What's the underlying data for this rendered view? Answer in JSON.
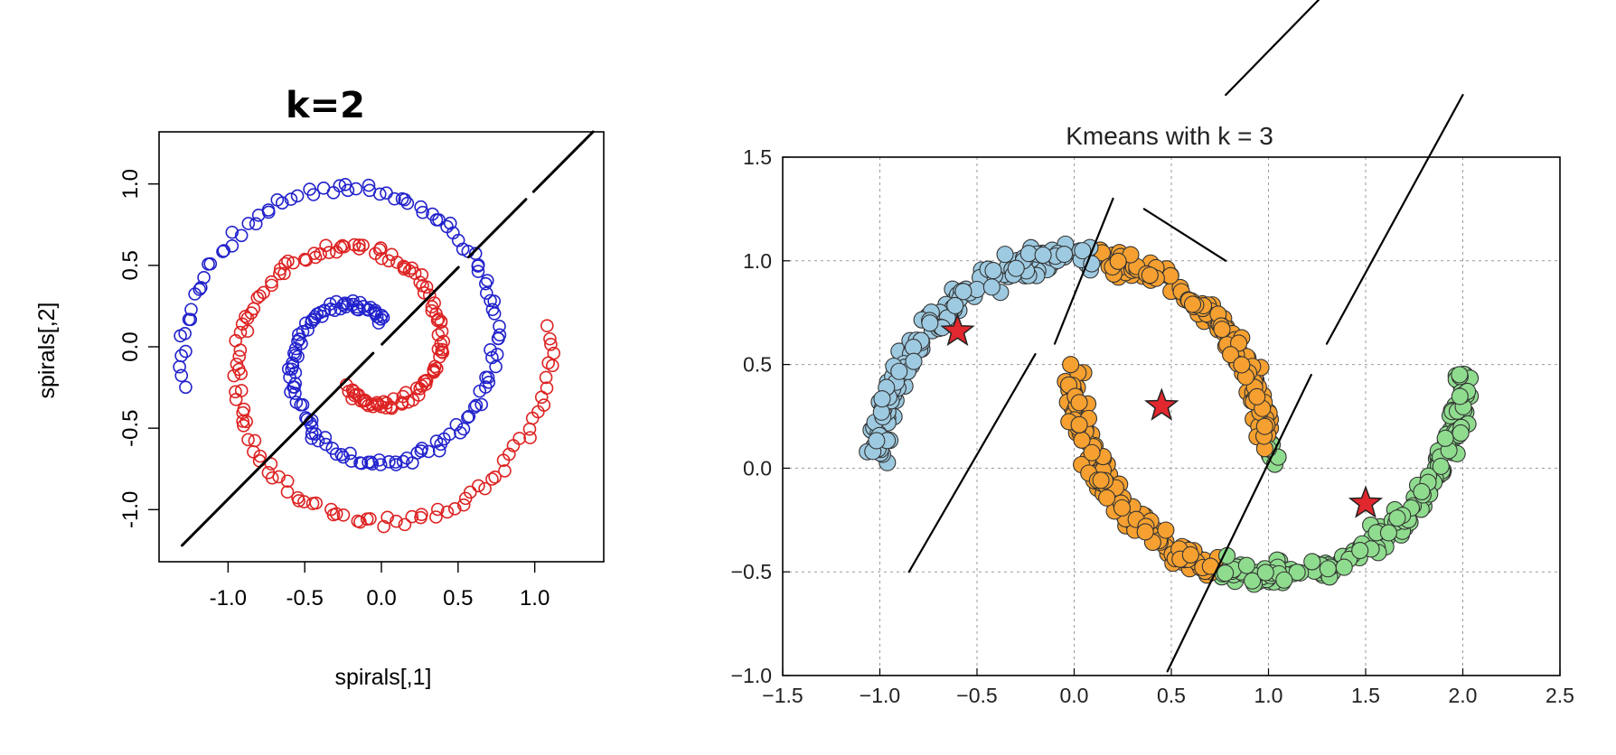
{
  "chart_data": [
    {
      "type": "scatter",
      "title": "k=2",
      "xlabel": "spirals[,1]",
      "ylabel": "spirals[,2]",
      "xlim": [
        -1.45,
        1.45
      ],
      "ylim": [
        -1.32,
        1.32
      ],
      "xticks": [
        -1.0,
        -0.5,
        0.0,
        0.5,
        1.0
      ],
      "xtick_labels": [
        "-1.0",
        "-0.5",
        "0.0",
        "0.5",
        "1.0"
      ],
      "yticks": [
        -1.0,
        -0.5,
        0.0,
        0.5,
        1.0
      ],
      "ytick_labels": [
        "-1.0",
        "-0.5",
        "0.0",
        "0.5",
        "1.0"
      ],
      "grid": false,
      "marker": "open-circle",
      "colors": {
        "cluster_1": "#2222cc",
        "cluster_2": "#dd2222"
      },
      "annotation_line": [
        [
          -1.3,
          -1.22
        ],
        [
          1.38,
          1.32
        ]
      ]
    },
    {
      "type": "scatter",
      "title": "Kmeans with k = 3",
      "xlabel": "",
      "ylabel": "",
      "xlim": [
        -1.5,
        2.5
      ],
      "ylim": [
        -1.0,
        1.5
      ],
      "xticks": [
        -1.5,
        -1.0,
        -0.5,
        0.0,
        0.5,
        1.0,
        1.5,
        2.0,
        2.5
      ],
      "xtick_labels": [
        "−1.5",
        "−1.0",
        "−0.5",
        "0.0",
        "0.5",
        "1.0",
        "1.5",
        "2.0",
        "2.5"
      ],
      "yticks": [
        -1.0,
        -0.5,
        0.0,
        0.5,
        1.0,
        1.5
      ],
      "ytick_labels": [
        "−1.0",
        "−0.5",
        "0.0",
        "0.5",
        "1.0",
        "1.5"
      ],
      "grid": true,
      "marker": "filled-circle",
      "colors": {
        "cluster_a": "#9ecae1",
        "cluster_b": "#f5a030",
        "cluster_c": "#8fdc8f",
        "centroid": "#e0282e"
      },
      "centroids": [
        {
          "x": -0.6,
          "y": 0.66
        },
        {
          "x": 0.45,
          "y": 0.3
        },
        {
          "x": 1.5,
          "y": -0.17
        }
      ],
      "annotation_lines": [
        [
          [
            0.78,
            1.8
          ],
          [
            1.27,
            2.27
          ]
        ],
        [
          [
            0.78,
            1.0
          ],
          [
            0.36,
            1.25
          ]
        ],
        [
          [
            0.2,
            1.3
          ],
          [
            -0.1,
            0.6
          ]
        ],
        [
          [
            -0.85,
            -0.5
          ],
          [
            -0.2,
            0.55
          ]
        ],
        [
          [
            0.48,
            -0.98
          ],
          [
            1.22,
            0.45
          ]
        ],
        [
          [
            1.3,
            0.6
          ],
          [
            2.0,
            1.8
          ]
        ]
      ]
    }
  ]
}
